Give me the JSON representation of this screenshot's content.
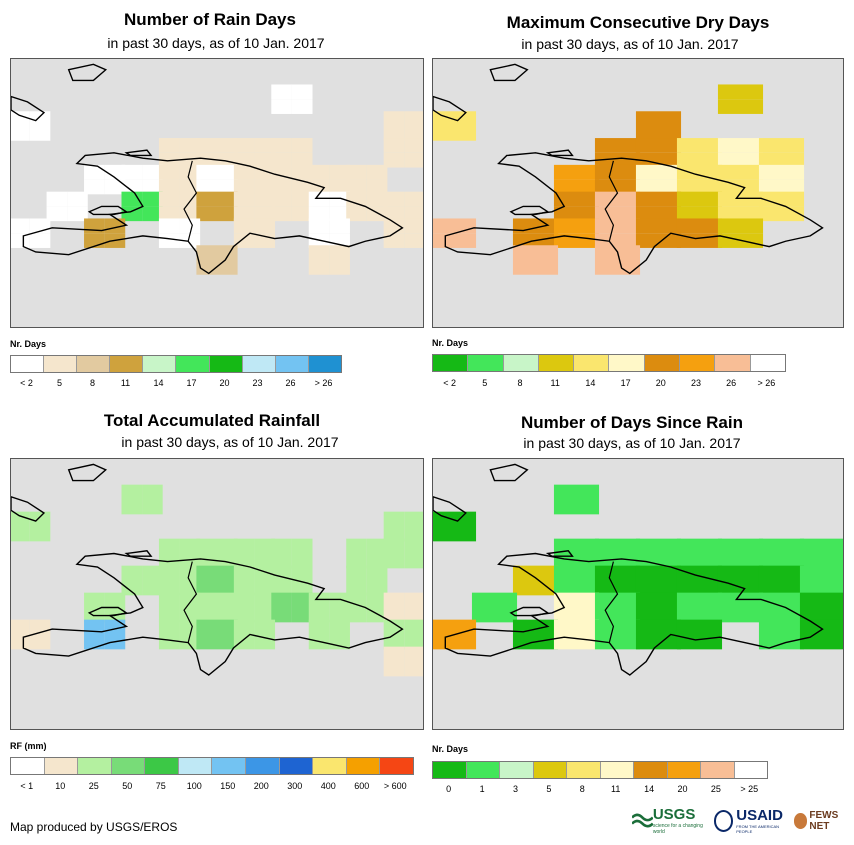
{
  "panels": [
    {
      "title": "Number of Rain Days",
      "subtitle": "in past 30 days, as of 10 Jan. 2017",
      "legend_title": "Nr. Days",
      "legend_colors": [
        "#ffffff",
        "#f5e6cd",
        "#e2caa0",
        "#cfa23d",
        "#c8f5c8",
        "#43e65a",
        "#15b915",
        "#bfe8f5",
        "#73c3f2",
        "#1f91d2"
      ],
      "legend_labels": [
        "< 2",
        "5",
        "8",
        "11",
        "14",
        "17",
        "20",
        "23",
        "26",
        "> 26"
      ],
      "grid": [
        "...........",
        ".......0...",
        "0.........1",
        "....1111..1",
        "..00101111.",
        ".0.51311011",
        "0.3.0.1.0.1",
        ".....2..1..",
        "...........",
        "..........."
      ]
    },
    {
      "title": "Maximum Consecutive Dry Days",
      "subtitle": "in past 30 days, as of 10 Jan. 2017",
      "legend_title": "Nr. Days",
      "legend_colors": [
        "#15b915",
        "#43e65a",
        "#c8f5c8",
        "#dcc80f",
        "#fae66e",
        "#fff8c8",
        "#dc8c0f",
        "#f5a00f",
        "#f8be96",
        "#ffffff"
      ],
      "legend_labels": [
        "< 2",
        "5",
        "8",
        "11",
        "14",
        "17",
        "20",
        "23",
        "26",
        "> 26"
      ],
      "grid": [
        "..........",
        ".......3..",
        "4....6....",
        "....66454.",
        "...765445.",
        "...686344.",
        "8.678663..",
        "..8.8.....",
        "..........",
        ".........."
      ]
    },
    {
      "title": "Total Accumulated Rainfall",
      "subtitle": "in past 30 days, as of 10 Jan. 2017",
      "legend_title": "RF (mm)",
      "legend_colors": [
        "#ffffff",
        "#f5e6cd",
        "#b4f0a0",
        "#78dc78",
        "#3cc846",
        "#bfe8f5",
        "#73c3f2",
        "#3c96e6",
        "#1e64d2",
        "#fae66e",
        "#f5a000",
        "#f54614"
      ],
      "legend_labels": [
        "< 1",
        "10",
        "25",
        "50",
        "75",
        "100",
        "150",
        "200",
        "300",
        "400",
        "600",
        "> 600"
      ],
      "grid": [
        "...........",
        "...2.......",
        "2.........2",
        "....2222.22",
        "...22322.2.",
        "..2.2223221",
        "1.6.232.2.2",
        "..........1",
        "...........",
        "..........."
      ]
    },
    {
      "title": "Number of Days Since Rain",
      "subtitle": "in past 30 days, as of 10 Jan. 2017",
      "legend_title": "Nr. Days",
      "legend_colors": [
        "#15b915",
        "#43e65a",
        "#c8f5c8",
        "#dcc80f",
        "#fae66e",
        "#fff8c8",
        "#dc8c0f",
        "#f5a00f",
        "#f8be96",
        "#ffffff"
      ],
      "legend_labels": [
        "0",
        "1",
        "3",
        "5",
        "8",
        "11",
        "14",
        "20",
        "25",
        "> 25"
      ],
      "grid": [
        "..........",
        "...1......",
        "0.........",
        "...1111111",
        "..31000001",
        ".1.5101110",
        "7.05100.10",
        "..........",
        "..........",
        ".........."
      ]
    }
  ],
  "credit": "Map produced by USGS/EROS",
  "logos": {
    "usgs": "USGS",
    "usgs_tagline": "science for a changing world",
    "usaid": "USAID",
    "usaid_tagline": "FROM THE AMERICAN PEOPLE",
    "fews": "FEWS NET"
  }
}
